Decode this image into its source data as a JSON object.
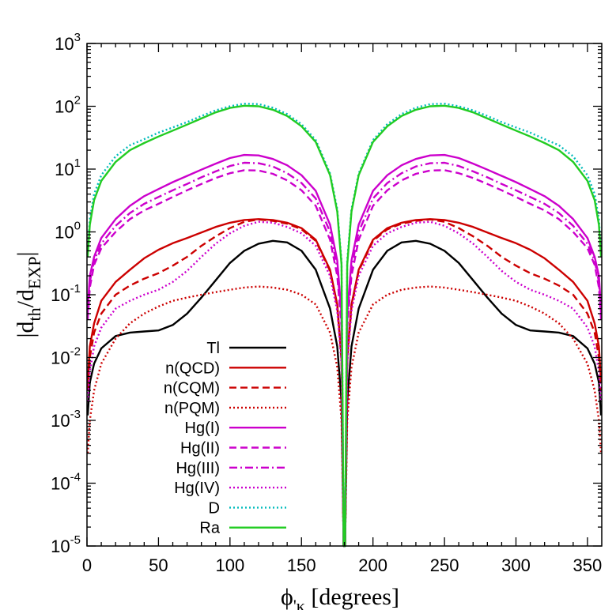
{
  "chart_data": {
    "type": "line",
    "xlabel": "ϕ'_κ  [degrees]",
    "ylabel": "|d_th/d_EXP|",
    "y_scale": "log",
    "xlim": [
      0,
      360
    ],
    "ylim": [
      1e-05,
      1000
    ],
    "x_ticks": [
      "0",
      "50",
      "100",
      "150",
      "200",
      "250",
      "300",
      "350"
    ],
    "y_ticks": [
      "-5",
      "-4",
      "-3",
      "-2",
      "-1",
      "0",
      "1",
      "2",
      "3"
    ],
    "grid": false,
    "legend_position": "lower-left",
    "series": [
      {
        "name": "Tl",
        "color": "#000000",
        "dash": "solid",
        "x": [
          0.5,
          2,
          5,
          10,
          20,
          30,
          40,
          50,
          60,
          70,
          80,
          90,
          100,
          110,
          120,
          130,
          140,
          150,
          160,
          170,
          175,
          178,
          179.5
        ],
        "y": [
          0.0012,
          0.004,
          0.008,
          0.014,
          0.022,
          0.025,
          0.026,
          0.027,
          0.033,
          0.05,
          0.09,
          0.17,
          0.32,
          0.5,
          0.65,
          0.72,
          0.68,
          0.5,
          0.25,
          0.06,
          0.015,
          0.002,
          1e-05
        ]
      },
      {
        "name": "n(QCD)",
        "color": "#cc0000",
        "dash": "solid",
        "x": [
          0.5,
          2,
          5,
          10,
          20,
          30,
          40,
          50,
          60,
          70,
          80,
          90,
          100,
          110,
          120,
          130,
          140,
          150,
          160,
          170,
          175,
          178,
          179.5
        ],
        "y": [
          0.004,
          0.015,
          0.035,
          0.08,
          0.16,
          0.25,
          0.38,
          0.52,
          0.66,
          0.8,
          0.98,
          1.2,
          1.4,
          1.55,
          1.6,
          1.55,
          1.4,
          1.15,
          0.75,
          0.25,
          0.07,
          0.01,
          1e-05
        ]
      },
      {
        "name": "n(CQM)",
        "color": "#cc0000",
        "dash": "dashed",
        "x": [
          0.5,
          2,
          5,
          10,
          20,
          30,
          40,
          50,
          60,
          70,
          80,
          90,
          100,
          110,
          120,
          130,
          140,
          150,
          160,
          170,
          175,
          178,
          179.5
        ],
        "y": [
          0.003,
          0.01,
          0.025,
          0.05,
          0.1,
          0.14,
          0.18,
          0.22,
          0.29,
          0.4,
          0.6,
          0.85,
          1.15,
          1.45,
          1.58,
          1.5,
          1.35,
          1.1,
          0.72,
          0.24,
          0.065,
          0.009,
          1e-05
        ]
      },
      {
        "name": "n(PQM)",
        "color": "#cc0000",
        "dash": "dotted",
        "x": [
          0.5,
          2,
          5,
          10,
          20,
          30,
          40,
          50,
          60,
          70,
          80,
          90,
          100,
          110,
          120,
          130,
          140,
          150,
          160,
          170,
          175,
          178,
          179.5
        ],
        "y": [
          0.0003,
          0.001,
          0.003,
          0.008,
          0.02,
          0.035,
          0.05,
          0.065,
          0.08,
          0.09,
          0.1,
          0.11,
          0.12,
          0.13,
          0.135,
          0.13,
          0.12,
          0.1,
          0.07,
          0.025,
          0.007,
          0.001,
          1e-05
        ]
      },
      {
        "name": "Hg(I)",
        "color": "#cc00cc",
        "dash": "solid",
        "x": [
          0.5,
          2,
          5,
          10,
          20,
          30,
          40,
          50,
          60,
          70,
          80,
          90,
          100,
          110,
          120,
          130,
          140,
          150,
          160,
          170,
          175,
          178,
          179.5
        ],
        "y": [
          0.06,
          0.2,
          0.4,
          0.8,
          1.6,
          2.6,
          3.7,
          4.8,
          6.2,
          7.8,
          9.8,
          12.2,
          15,
          16.8,
          16.5,
          14.5,
          11.5,
          8,
          4.5,
          1.3,
          0.35,
          0.05,
          1e-05
        ]
      },
      {
        "name": "Hg(II)",
        "color": "#cc00cc",
        "dash": "dashed",
        "x": [
          0.5,
          2,
          5,
          10,
          20,
          30,
          40,
          50,
          60,
          70,
          80,
          90,
          100,
          110,
          120,
          130,
          140,
          150,
          160,
          170,
          175,
          178,
          179.5
        ],
        "y": [
          0.04,
          0.13,
          0.3,
          0.55,
          1.0,
          1.6,
          2.2,
          2.8,
          3.6,
          4.6,
          5.8,
          7.2,
          8.6,
          9.6,
          9.5,
          8.4,
          6.6,
          4.6,
          2.6,
          0.75,
          0.2,
          0.03,
          1e-05
        ]
      },
      {
        "name": "Hg(III)",
        "color": "#cc00cc",
        "dash": "dashdot",
        "x": [
          0.5,
          2,
          5,
          10,
          20,
          30,
          40,
          50,
          60,
          70,
          80,
          90,
          100,
          110,
          120,
          130,
          140,
          150,
          160,
          170,
          175,
          178,
          179.5
        ],
        "y": [
          0.05,
          0.16,
          0.35,
          0.65,
          1.25,
          2.0,
          2.8,
          3.6,
          4.6,
          5.8,
          7.4,
          9.2,
          11.2,
          12.6,
          12.4,
          11,
          8.6,
          6,
          3.4,
          1.0,
          0.27,
          0.04,
          1e-05
        ]
      },
      {
        "name": "Hg(IV)",
        "color": "#cc00cc",
        "dash": "dotted",
        "x": [
          0.5,
          2,
          5,
          10,
          20,
          30,
          40,
          50,
          60,
          70,
          80,
          90,
          100,
          110,
          120,
          130,
          140,
          150,
          160,
          170,
          175,
          178,
          179.5
        ],
        "y": [
          0.002,
          0.006,
          0.015,
          0.03,
          0.06,
          0.08,
          0.1,
          0.12,
          0.16,
          0.24,
          0.4,
          0.65,
          0.95,
          1.25,
          1.45,
          1.4,
          1.2,
          0.95,
          0.6,
          0.2,
          0.055,
          0.008,
          1e-05
        ]
      },
      {
        "name": "D",
        "color": "#00bbbb",
        "dash": "dotted",
        "x": [
          0.5,
          2,
          5,
          10,
          20,
          30,
          40,
          50,
          60,
          70,
          80,
          90,
          100,
          110,
          120,
          130,
          140,
          150,
          160,
          170,
          175,
          178,
          179.5
        ],
        "y": [
          0.5,
          1.6,
          4,
          8,
          16,
          24,
          30,
          38,
          46,
          56,
          70,
          86,
          100,
          110,
          108,
          95,
          75,
          52,
          29,
          8.5,
          2.3,
          0.35,
          1e-05
        ]
      },
      {
        "name": "Ra",
        "color": "#22cc22",
        "dash": "solid",
        "x": [
          0.5,
          2,
          5,
          10,
          20,
          30,
          40,
          50,
          60,
          70,
          80,
          90,
          100,
          110,
          120,
          130,
          140,
          150,
          160,
          170,
          175,
          178,
          179.5
        ],
        "y": [
          0.4,
          1.3,
          3.2,
          6.5,
          13,
          20,
          26,
          33,
          41,
          51,
          64,
          80,
          94,
          102,
          100,
          88,
          70,
          48,
          27,
          8,
          2.1,
          0.3,
          1e-05
        ]
      }
    ]
  }
}
